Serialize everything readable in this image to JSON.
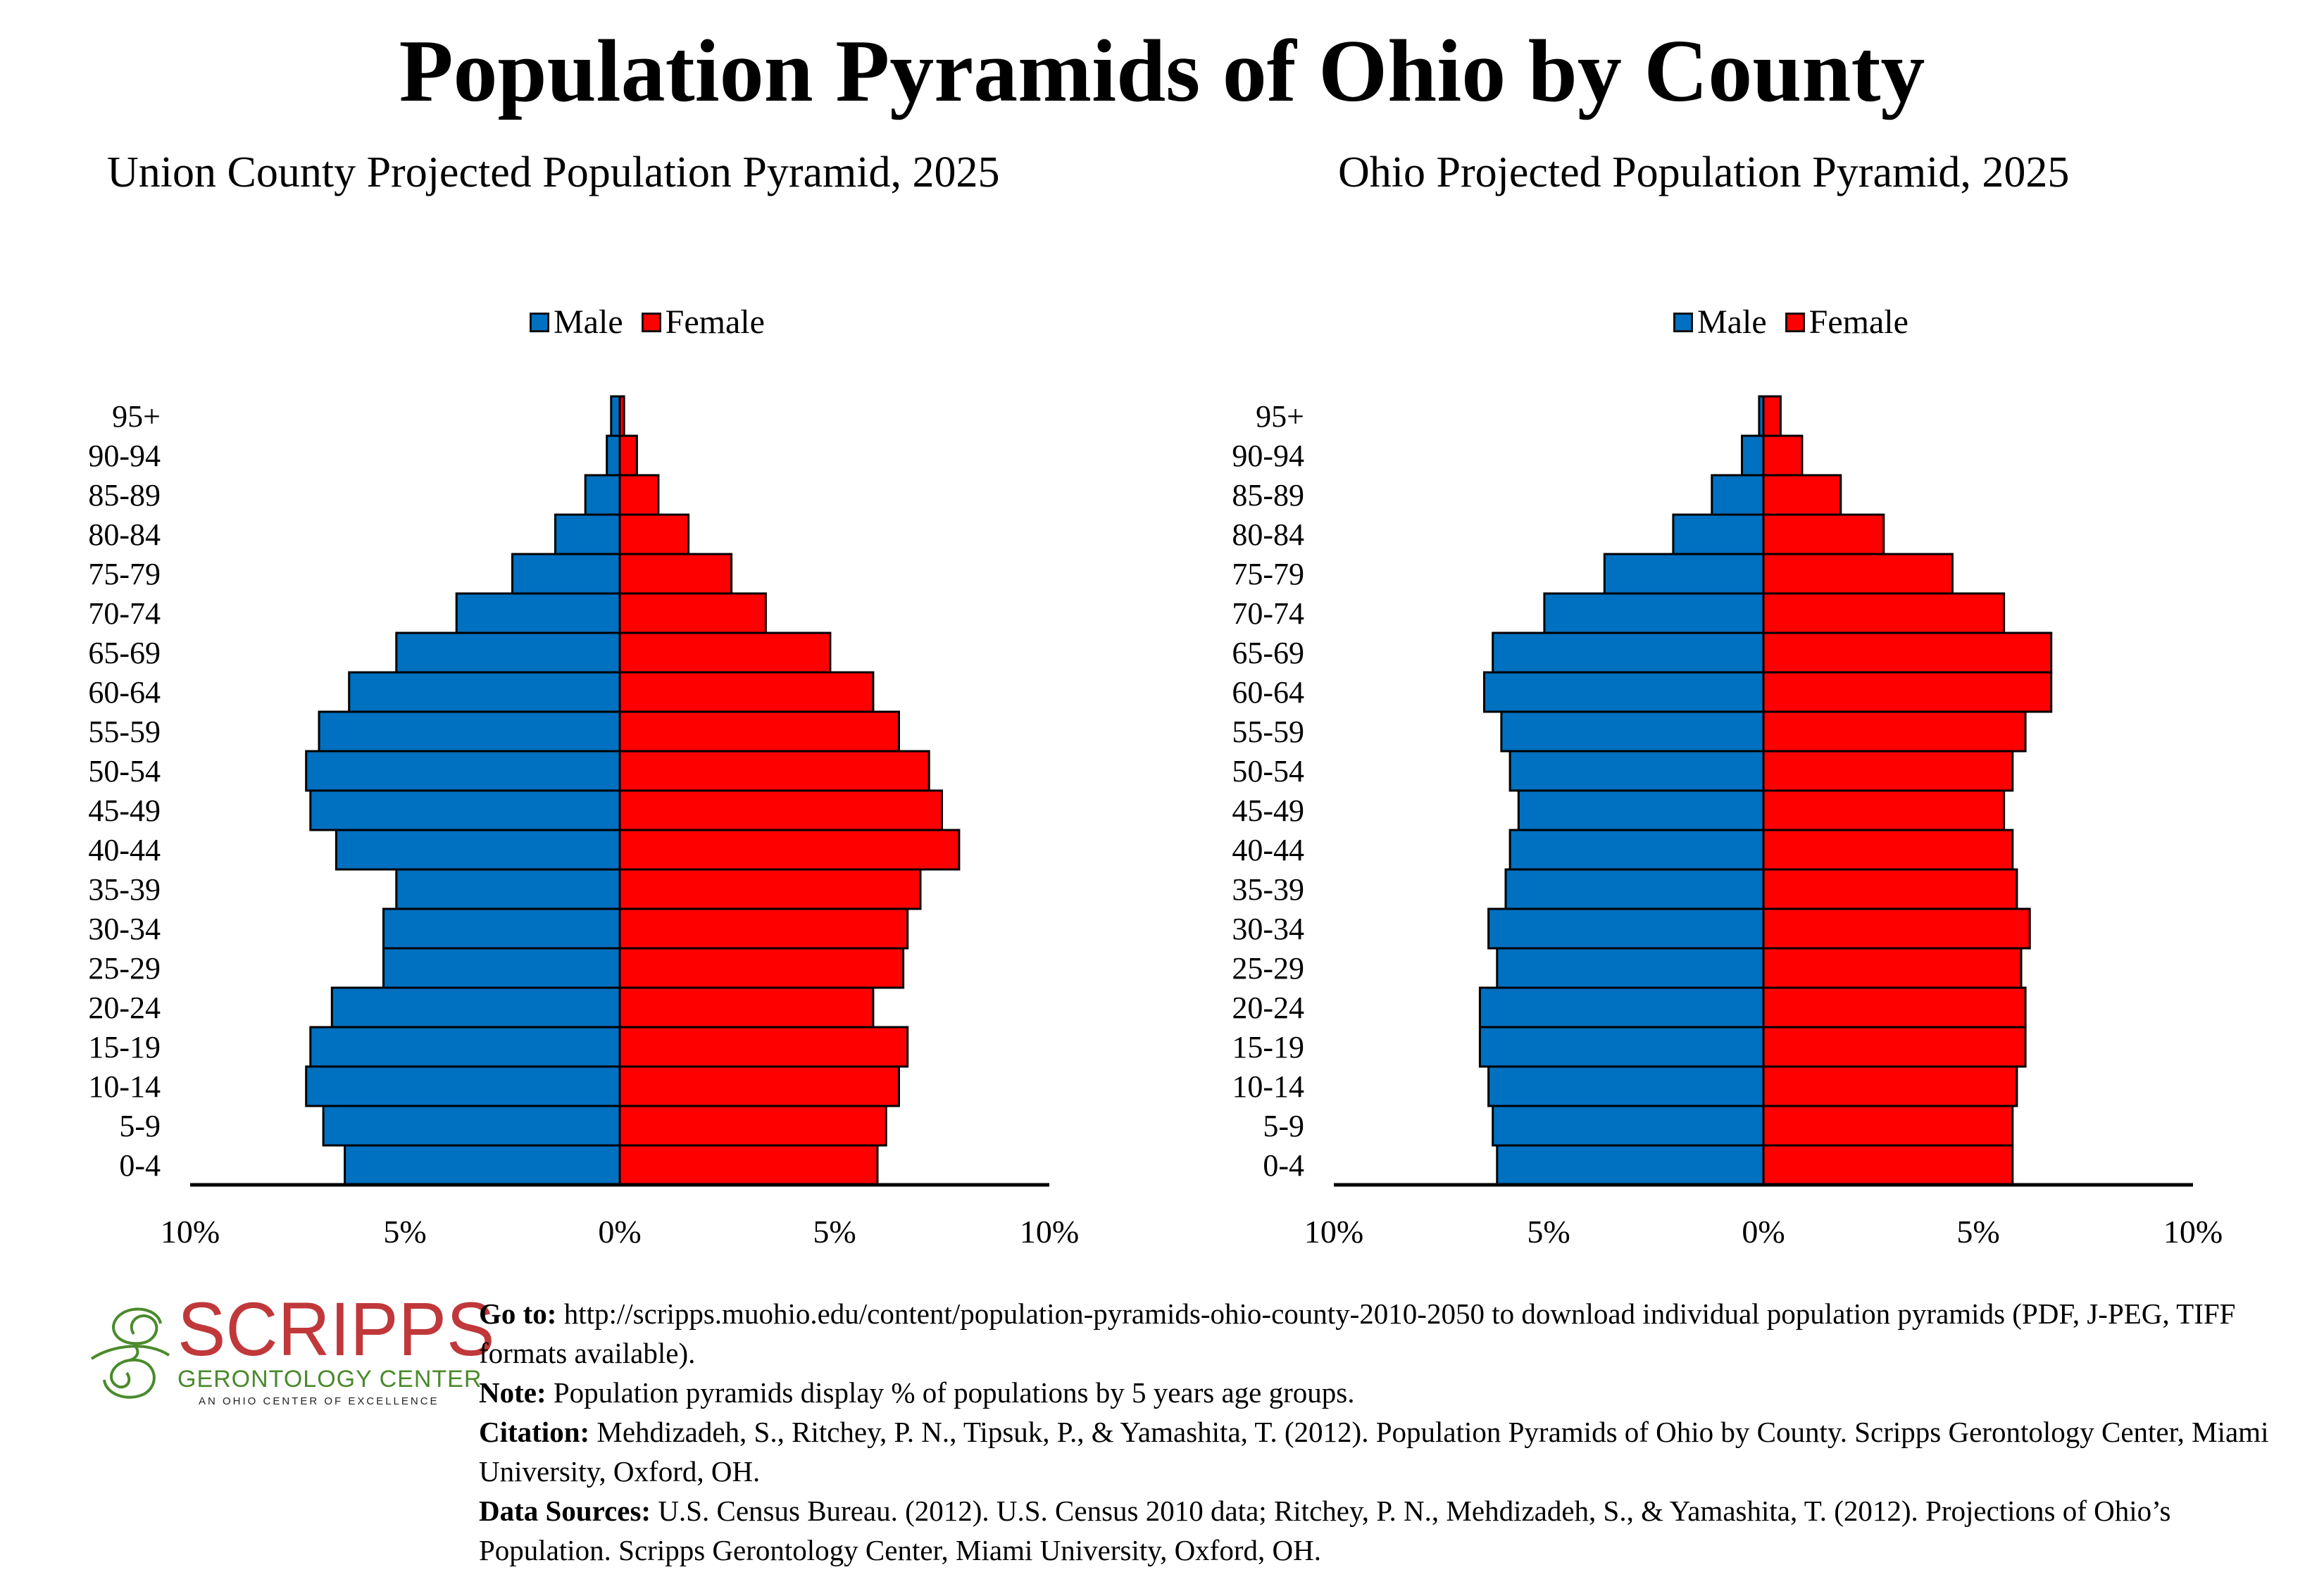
{
  "title": "Population Pyramids of Ohio by County",
  "colors": {
    "male": "#0070C0",
    "female": "#FF0000",
    "axis": "#000000"
  },
  "legend": {
    "male": "Male",
    "female": "Female"
  },
  "chart_data": [
    {
      "type": "bar",
      "orientation": "horizontal-pyramid",
      "title": "Union County Projected Population Pyramid, 2025",
      "xlabel": "",
      "ylabel": "",
      "categories": [
        "95+",
        "90-94",
        "85-89",
        "80-84",
        "75-79",
        "70-74",
        "65-69",
        "60-64",
        "55-59",
        "50-54",
        "45-49",
        "40-44",
        "35-39",
        "30-34",
        "25-29",
        "20-24",
        "15-19",
        "10-14",
        "5-9",
        "0-4"
      ],
      "series": [
        {
          "name": "Male",
          "values": [
            0.2,
            0.3,
            0.8,
            1.5,
            2.5,
            3.8,
            5.2,
            6.3,
            7.0,
            7.3,
            7.2,
            6.6,
            5.2,
            5.5,
            5.5,
            6.7,
            7.2,
            7.3,
            6.9,
            6.4
          ]
        },
        {
          "name": "Female",
          "values": [
            0.1,
            0.4,
            0.9,
            1.6,
            2.6,
            3.4,
            4.9,
            5.9,
            6.5,
            7.2,
            7.5,
            7.9,
            7.0,
            6.7,
            6.6,
            5.9,
            6.7,
            6.5,
            6.2,
            6.0
          ]
        }
      ],
      "xlim": [
        -10,
        10
      ],
      "xticks": [
        "10%",
        "5%",
        "0%",
        "5%",
        "10%"
      ],
      "legend_position": "top-center",
      "grid": false
    },
    {
      "type": "bar",
      "orientation": "horizontal-pyramid",
      "title": "Ohio Projected Population Pyramid, 2025",
      "xlabel": "",
      "ylabel": "",
      "categories": [
        "95+",
        "90-94",
        "85-89",
        "80-84",
        "75-79",
        "70-74",
        "65-69",
        "60-64",
        "55-59",
        "50-54",
        "45-49",
        "40-44",
        "35-39",
        "30-34",
        "25-29",
        "20-24",
        "15-19",
        "10-14",
        "5-9",
        "0-4"
      ],
      "series": [
        {
          "name": "Male",
          "values": [
            0.1,
            0.5,
            1.2,
            2.1,
            3.7,
            5.1,
            6.3,
            6.5,
            6.1,
            5.9,
            5.7,
            5.9,
            6.0,
            6.4,
            6.2,
            6.6,
            6.6,
            6.4,
            6.3,
            6.2
          ]
        },
        {
          "name": "Female",
          "values": [
            0.4,
            0.9,
            1.8,
            2.8,
            4.4,
            5.6,
            6.7,
            6.7,
            6.1,
            5.8,
            5.6,
            5.8,
            5.9,
            6.2,
            6.0,
            6.1,
            6.1,
            5.9,
            5.8,
            5.8
          ]
        }
      ],
      "xlim": [
        -10,
        10
      ],
      "xticks": [
        "10%",
        "5%",
        "0%",
        "5%",
        "10%"
      ],
      "legend_position": "top-center",
      "grid": false
    }
  ],
  "logo": {
    "name": "SCRIPPS",
    "subtitle": "GERONTOLOGY CENTER",
    "tagline": "AN OHIO CENTER OF EXCELLENCE",
    "colors": {
      "name": "#C0383A",
      "subtitle": "#4A8A2C"
    }
  },
  "footer": {
    "goto_label": "Go to:",
    "goto_text": " http://scripps.muohio.edu/content/population-pyramids-ohio-county-2010-2050 to download individual population pyramids (PDF, J-PEG, TIFF formats available).",
    "note_label": "Note:",
    "note_text": " Population pyramids display % of populations by 5 years age groups.",
    "citation_label": "Citation:",
    "citation_text": " Mehdizadeh, S., Ritchey, P. N., Tipsuk, P., & Yamashita, T. (2012). Population Pyramids of Ohio by County. Scripps Gerontology Center, Miami University, Oxford, OH.",
    "sources_label": "Data Sources:",
    "sources_text": " U.S. Census Bureau. (2012). U.S. Census 2010 data; Ritchey, P. N., Mehdizadeh, S., & Yamashita, T. (2012). Projections of Ohio’s Population. Scripps Gerontology Center, Miami University, Oxford, OH."
  }
}
